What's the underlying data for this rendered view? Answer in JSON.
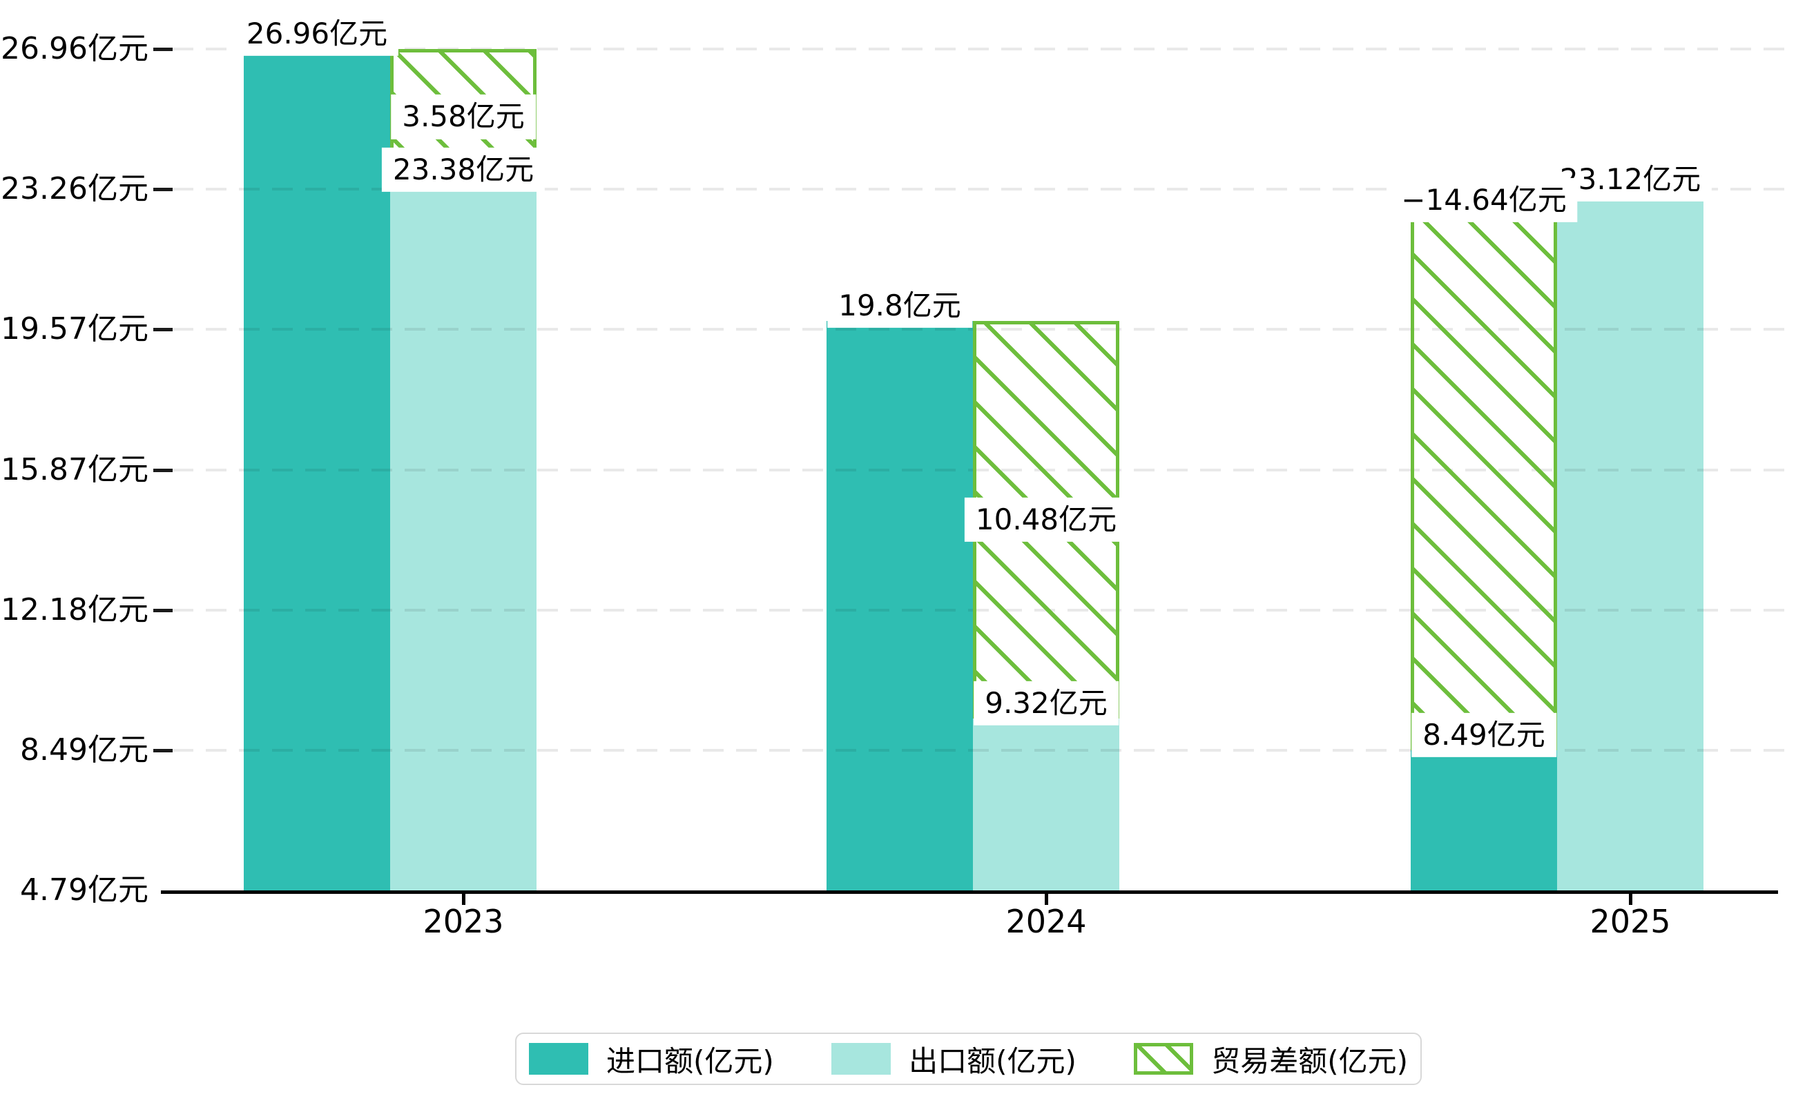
{
  "chart_data": {
    "type": "bar",
    "title": "",
    "categories": [
      "2023",
      "2024",
      "2025"
    ],
    "series": [
      {
        "name": "进口额(亿元)",
        "key": "import",
        "values": [
          26.96,
          19.8,
          8.49
        ],
        "labels": [
          "26.96亿元",
          "19.8亿元",
          "8.49亿元"
        ],
        "color": "#2fbeb2",
        "style": "solid"
      },
      {
        "name": "出口额(亿元)",
        "key": "export",
        "values": [
          23.38,
          9.32,
          23.12
        ],
        "labels": [
          "23.38亿元",
          "9.32亿元",
          "23.12亿元"
        ],
        "color": "#a7e6de",
        "style": "solid"
      },
      {
        "name": "贸易差额(亿元)",
        "key": "balance",
        "values": [
          3.58,
          10.48,
          -14.64
        ],
        "labels": [
          "3.58亿元",
          "10.48亿元",
          "−14.64亿元"
        ],
        "color": "#6dbe3c",
        "style": "hatched"
      }
    ],
    "y_axis": {
      "unit": "亿元",
      "min": 4.79,
      "max": 26.96,
      "ticks": [
        {
          "value": 26.96,
          "label": "26.96亿元"
        },
        {
          "value": 23.26,
          "label": "23.26亿元"
        },
        {
          "value": 19.57,
          "label": "19.57亿元"
        },
        {
          "value": 15.87,
          "label": "15.87亿元"
        },
        {
          "value": 12.18,
          "label": "12.18亿元"
        },
        {
          "value": 8.49,
          "label": "8.49亿元"
        },
        {
          "value": 4.79,
          "label": "4.79亿元"
        }
      ]
    },
    "grid": "horizontal-dashed",
    "legend": {
      "position": "bottom",
      "items": [
        "进口额(亿元)",
        "出口额(亿元)",
        "贸易差额(亿元)"
      ]
    },
    "colors": {
      "import": "#2fbeb2",
      "export": "#a7e6de",
      "balance": "#6dbe3c",
      "grid": "#e8e8e8",
      "axis": "#000000",
      "label_text": "#000000",
      "label_bg": "#ffffff",
      "legend_border": "#d8d8d8"
    }
  }
}
